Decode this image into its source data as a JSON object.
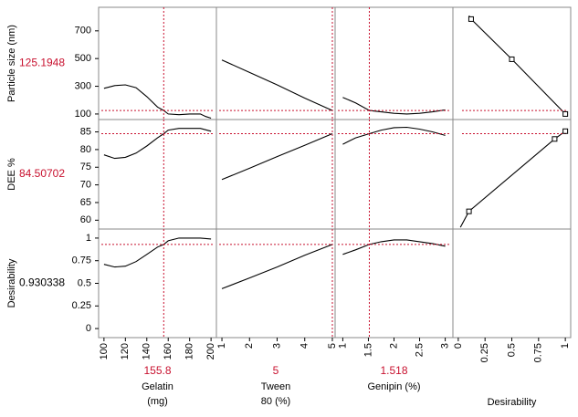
{
  "chart_data": {
    "type": "line",
    "title": "",
    "colors": {
      "crosshair": "#c8102e",
      "curve": "#000000",
      "current_value": "#c8102e",
      "frame": "#888888"
    },
    "rows": [
      {
        "ylabel": "Particle size (nm)",
        "current": "125.1948",
        "current_color": "#c8102e",
        "ylim": [
          60,
          870
        ],
        "yticks": [
          "100",
          "300",
          "500",
          "700"
        ],
        "ytick_values": [
          100,
          300,
          500,
          700
        ]
      },
      {
        "ylabel": "DEE %",
        "current": "84.50702",
        "current_color": "#c8102e",
        "ylim": [
          57.5,
          88.5
        ],
        "yticks": [
          "60",
          "65",
          "70",
          "75",
          "80",
          "85"
        ],
        "ytick_values": [
          60,
          65,
          70,
          75,
          80,
          85
        ]
      },
      {
        "ylabel": "Desirability",
        "current": "0.930338",
        "current_color": "#000000",
        "ylim": [
          -0.1,
          1.1
        ],
        "yticks": [
          "0",
          "0.25",
          "0.5",
          "0.75",
          "1"
        ],
        "ytick_values": [
          0,
          0.25,
          0.5,
          0.75,
          1
        ]
      }
    ],
    "factors": [
      {
        "xlabel_line1": "Gelatin",
        "xlabel_line2": "(mg)",
        "current": "155.8",
        "current_value": 155.8,
        "xlim": [
          95,
          205
        ],
        "xticks": [
          "100",
          "120",
          "140",
          "160",
          "180",
          "200"
        ],
        "xtick_values": [
          100,
          120,
          140,
          160,
          180,
          200
        ]
      },
      {
        "xlabel_line1": "Tween",
        "xlabel_line2": "80 (%)",
        "current": "5",
        "current_value": 5,
        "xlim": [
          0.8,
          5.1
        ],
        "xticks": [
          "1",
          "2",
          "3",
          "4",
          "5"
        ],
        "xtick_values": [
          1,
          2,
          3,
          4,
          5
        ]
      },
      {
        "xlabel_line1": "Genipin (%)",
        "xlabel_line2": "",
        "current": "1.518",
        "current_value": 1.518,
        "xlim": [
          0.85,
          3.15
        ],
        "xticks": [
          "1",
          "1.5",
          "2",
          "2.5",
          "3"
        ],
        "xtick_values": [
          1,
          1.5,
          2,
          2.5,
          3
        ]
      }
    ],
    "desirability_column": {
      "xlabel": "Desirability",
      "xlim": [
        -0.05,
        1.05
      ],
      "xticks": [
        "0",
        "0.25",
        "0.5",
        "0.75",
        "1"
      ],
      "xtick_values": [
        0,
        0.25,
        0.5,
        0.75,
        1
      ]
    },
    "profiles": [
      [
        [
          [
            100,
            285
          ],
          [
            110,
            305
          ],
          [
            120,
            310
          ],
          [
            130,
            290
          ],
          [
            140,
            225
          ],
          [
            150,
            150
          ],
          [
            155.8,
            125.2
          ],
          [
            160,
            100
          ],
          [
            170,
            95
          ],
          [
            180,
            100
          ],
          [
            190,
            100
          ],
          [
            195,
            82
          ],
          [
            200,
            70
          ]
        ],
        [
          [
            1,
            490
          ],
          [
            2,
            400
          ],
          [
            3,
            310
          ],
          [
            4,
            215
          ],
          [
            5,
            125.2
          ]
        ],
        [
          [
            1,
            220
          ],
          [
            1.25,
            180
          ],
          [
            1.518,
            125.2
          ],
          [
            1.75,
            115
          ],
          [
            2,
            105
          ],
          [
            2.25,
            100
          ],
          [
            2.5,
            105
          ],
          [
            2.75,
            115
          ],
          [
            3,
            130
          ]
        ]
      ],
      [
        [
          [
            100,
            78.5
          ],
          [
            110,
            77.5
          ],
          [
            120,
            77.8
          ],
          [
            130,
            79
          ],
          [
            140,
            81
          ],
          [
            150,
            83.3
          ],
          [
            155.8,
            84.5
          ],
          [
            160,
            85.5
          ],
          [
            170,
            86
          ],
          [
            180,
            86
          ],
          [
            190,
            86
          ],
          [
            200,
            85.2
          ]
        ],
        [
          [
            1,
            71.5
          ],
          [
            2,
            74.7
          ],
          [
            3,
            78
          ],
          [
            4,
            81.2
          ],
          [
            5,
            84.5
          ]
        ],
        [
          [
            1,
            81.5
          ],
          [
            1.25,
            83.3
          ],
          [
            1.518,
            84.5
          ],
          [
            1.75,
            85.5
          ],
          [
            2,
            86.2
          ],
          [
            2.25,
            86.3
          ],
          [
            2.5,
            85.8
          ],
          [
            2.75,
            85
          ],
          [
            3,
            84
          ]
        ]
      ],
      [
        [
          [
            100,
            0.71
          ],
          [
            110,
            0.68
          ],
          [
            120,
            0.69
          ],
          [
            130,
            0.74
          ],
          [
            140,
            0.82
          ],
          [
            150,
            0.9
          ],
          [
            155.8,
            0.93
          ],
          [
            160,
            0.97
          ],
          [
            170,
            1
          ],
          [
            180,
            1
          ],
          [
            190,
            1
          ],
          [
            200,
            0.99
          ]
        ],
        [
          [
            1,
            0.44
          ],
          [
            2,
            0.56
          ],
          [
            3,
            0.68
          ],
          [
            4,
            0.81
          ],
          [
            5,
            0.93
          ]
        ],
        [
          [
            1,
            0.82
          ],
          [
            1.25,
            0.87
          ],
          [
            1.518,
            0.93
          ],
          [
            1.75,
            0.96
          ],
          [
            2,
            0.98
          ],
          [
            2.25,
            0.98
          ],
          [
            2.5,
            0.96
          ],
          [
            2.75,
            0.94
          ],
          [
            3,
            0.91
          ]
        ]
      ]
    ],
    "desirability_functions": [
      {
        "line": [
          [
            0.1,
            810
          ],
          [
            0.12,
            785
          ],
          [
            0.5,
            495
          ],
          [
            1,
            100
          ]
        ],
        "markers": [
          [
            0.12,
            785
          ],
          [
            0.5,
            495
          ],
          [
            1,
            100
          ]
        ]
      },
      {
        "line": [
          [
            0.02,
            58
          ],
          [
            0.1,
            62.5
          ],
          [
            0.9,
            83
          ],
          [
            1,
            85.2
          ]
        ],
        "markers": [
          [
            0.1,
            62.5
          ],
          [
            0.9,
            83
          ],
          [
            1,
            85.2
          ]
        ]
      }
    ]
  }
}
